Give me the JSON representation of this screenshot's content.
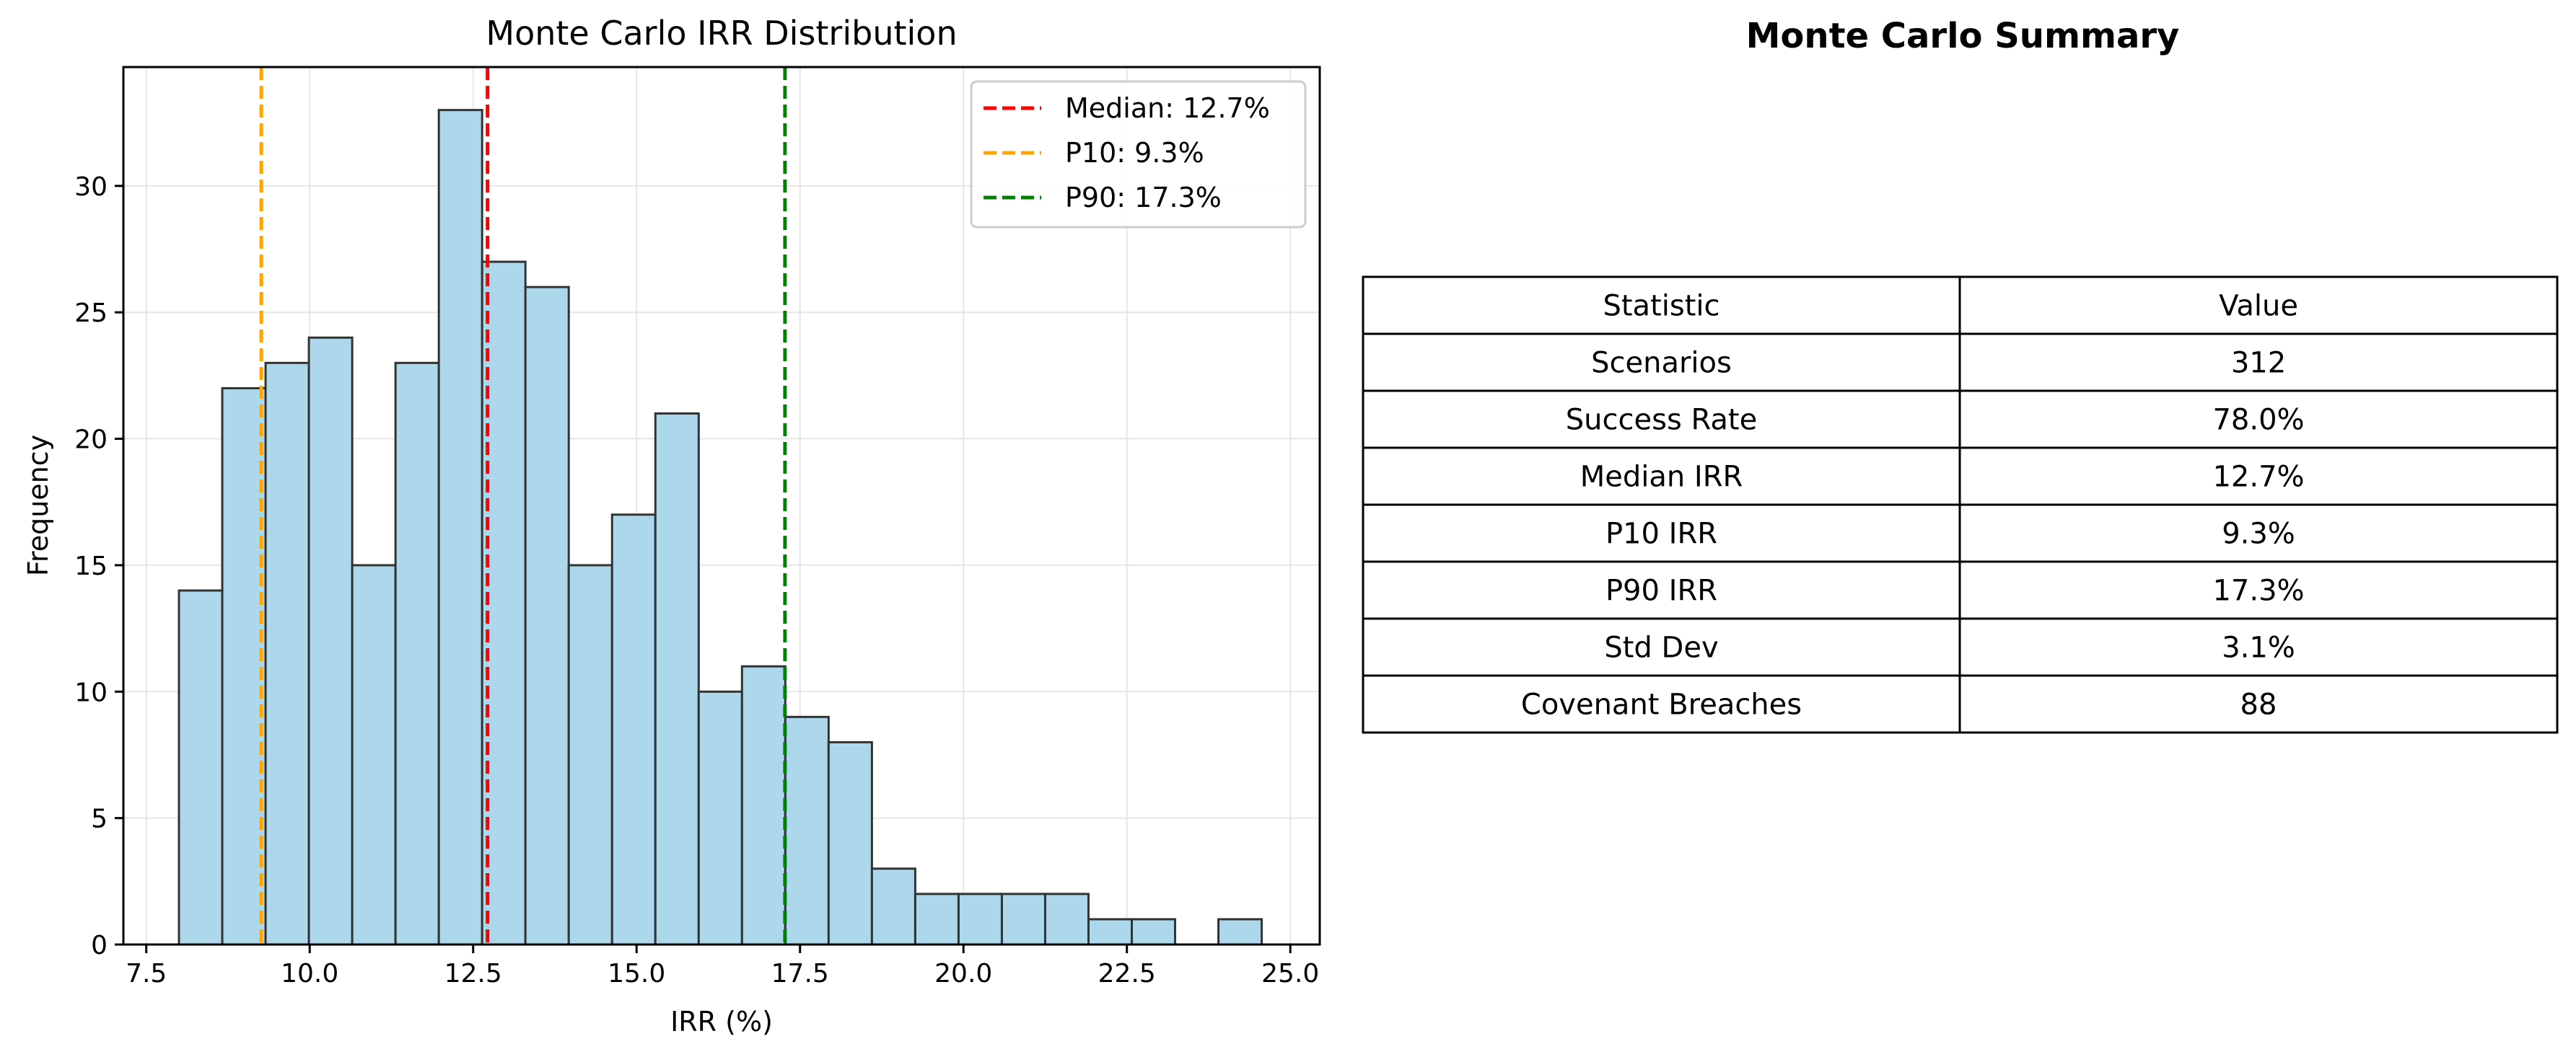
{
  "chart_data": [
    {
      "type": "bar",
      "title": "Monte Carlo IRR Distribution",
      "xlabel": "IRR (%)",
      "ylabel": "Frequency",
      "xlim": [
        7.15,
        25.45
      ],
      "ylim": [
        0,
        34.7
      ],
      "x_ticks": [
        7.5,
        10.0,
        12.5,
        15.0,
        17.5,
        20.0,
        22.5,
        25.0
      ],
      "x_tick_labels": [
        "7.5",
        "10.0",
        "12.5",
        "15.0",
        "17.5",
        "20.0",
        "22.5",
        "25.0"
      ],
      "y_ticks": [
        0,
        5,
        10,
        15,
        20,
        25,
        30
      ],
      "y_tick_labels": [
        "0",
        "5",
        "10",
        "15",
        "20",
        "25",
        "30"
      ],
      "grid": true,
      "legend_position": "top-right",
      "bins": {
        "start": 8.0,
        "width": 0.6625,
        "counts": [
          14,
          22,
          23,
          24,
          15,
          23,
          33,
          27,
          26,
          15,
          17,
          21,
          10,
          11,
          9,
          8,
          3,
          2,
          2,
          2,
          2,
          1,
          1,
          0,
          1
        ]
      },
      "bar_color": "#add8ec",
      "bar_edge_color": "#333333",
      "reference_lines": [
        {
          "label": "Median: 12.7%",
          "x": 12.72,
          "color": "#ff0000"
        },
        {
          "label": "P10: 9.3%",
          "x": 9.26,
          "color": "#ffa500"
        },
        {
          "label": "P90: 17.3%",
          "x": 17.27,
          "color": "#008000"
        }
      ]
    },
    {
      "type": "table",
      "title": "Monte Carlo Summary",
      "columns": [
        "Statistic",
        "Value"
      ],
      "rows": [
        [
          "Scenarios",
          "312"
        ],
        [
          "Success Rate",
          "78.0%"
        ],
        [
          "Median IRR",
          "12.7%"
        ],
        [
          "P10 IRR",
          "9.3%"
        ],
        [
          "P90 IRR",
          "17.3%"
        ],
        [
          "Std Dev",
          "3.1%"
        ],
        [
          "Covenant Breaches",
          "88"
        ]
      ]
    }
  ]
}
